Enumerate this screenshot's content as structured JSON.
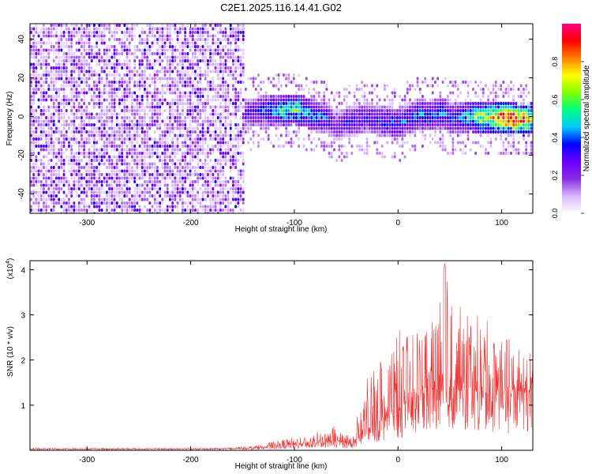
{
  "figure_title": "C2E1.2025.116.14.41.G02",
  "chart_data": [
    {
      "type": "heatmap",
      "title": "C2E1.2025.116.14.41.G02",
      "xlabel": "Height of straight line (km)",
      "ylabel": "Frequency (Hz)",
      "xlim": [
        -355,
        130
      ],
      "ylim": [
        -50,
        48
      ],
      "x_ticks": [
        -300,
        -200,
        -100,
        0,
        100
      ],
      "x_tick_labels": [
        "-300",
        "-200",
        "-100",
        "0",
        "100"
      ],
      "y_ticks": [
        -40,
        -20,
        0,
        20,
        40
      ],
      "y_tick_labels": [
        "-40",
        "-20",
        "0",
        "20",
        "40"
      ],
      "colorbar": {
        "label": "Normalized spectral amplitude",
        "range": [
          0.0,
          1.0
        ],
        "ticks": [
          0.0,
          0.2,
          0.4,
          0.6,
          0.8
        ],
        "tick_labels": [
          "0.0",
          "0.2",
          "0.4",
          "0.6",
          "0.8"
        ],
        "colormap": [
          "#ffffff",
          "#d8b8ff",
          "#8a2be2",
          "#6a00ff",
          "#0000ff",
          "#00c8ff",
          "#00ff80",
          "#80ff00",
          "#ffff00",
          "#ff8000",
          "#ff0000",
          "#ff0080"
        ]
      },
      "noise_region": {
        "x_range": [
          -355,
          -150
        ],
        "y_range": [
          -50,
          48
        ],
        "typical_amplitude": 0.15
      },
      "signal_ridge": {
        "x": [
          -150,
          -130,
          -110,
          -100,
          -90,
          -80,
          -70,
          -62,
          -50,
          -30,
          -10,
          0,
          10,
          20,
          30,
          40,
          50,
          60,
          70,
          80,
          90,
          100,
          110,
          120,
          130
        ],
        "center_freq": [
          2,
          4,
          4,
          5,
          3,
          1,
          0,
          -4,
          -2,
          0,
          -2,
          -3,
          0,
          2,
          1,
          3,
          0,
          0,
          1,
          0,
          0,
          0,
          0,
          -1,
          0
        ],
        "amplitude": [
          0.2,
          0.3,
          0.45,
          0.5,
          0.4,
          0.35,
          0.3,
          0.2,
          0.25,
          0.25,
          0.3,
          0.3,
          0.3,
          0.35,
          0.3,
          0.35,
          0.3,
          0.35,
          0.45,
          0.55,
          0.6,
          0.75,
          0.8,
          0.7,
          0.6
        ],
        "half_width_hz": 8
      }
    },
    {
      "type": "line",
      "xlabel": "Height of straight line (km)",
      "ylabel": "SNR (10 * v/v)",
      "y_scale_label": "(x10",
      "y_scale_exponent": "4",
      "y_scale_suffix": ")",
      "xlim": [
        -355,
        130
      ],
      "ylim": [
        0,
        4.2
      ],
      "x_ticks": [
        -300,
        -200,
        -100,
        0,
        100
      ],
      "x_tick_labels": [
        "-300",
        "-200",
        "-100",
        "0",
        "100"
      ],
      "y_ticks": [
        1,
        2,
        3,
        4
      ],
      "y_tick_labels": [
        "1",
        "2",
        "3",
        "4"
      ],
      "series": [
        {
          "color": "#ee3333",
          "envelope": {
            "x": [
              -355,
              -300,
              -200,
              -160,
              -140,
              -120,
              -100,
              -80,
              -60,
              -45,
              -30,
              -20,
              -10,
              0,
              10,
              20,
              30,
              40,
              45,
              50,
              60,
              70,
              80,
              90,
              100,
              110,
              120,
              130
            ],
            "mean": [
              0.03,
              0.03,
              0.03,
              0.04,
              0.05,
              0.08,
              0.12,
              0.15,
              0.2,
              0.12,
              0.45,
              0.6,
              0.75,
              0.9,
              1.0,
              1.2,
              1.25,
              1.4,
              1.5,
              1.4,
              1.3,
              1.3,
              1.25,
              1.25,
              1.2,
              1.25,
              1.3,
              1.35
            ],
            "peak": [
              0.05,
              0.05,
              0.05,
              0.06,
              0.1,
              0.2,
              0.3,
              0.4,
              0.55,
              0.3,
              1.6,
              2.2,
              2.5,
              2.7,
              2.6,
              2.9,
              3.0,
              3.3,
              4.15,
              3.5,
              3.2,
              3.2,
              3.0,
              2.8,
              2.6,
              2.5,
              2.4,
              2.3
            ]
          }
        }
      ]
    }
  ]
}
